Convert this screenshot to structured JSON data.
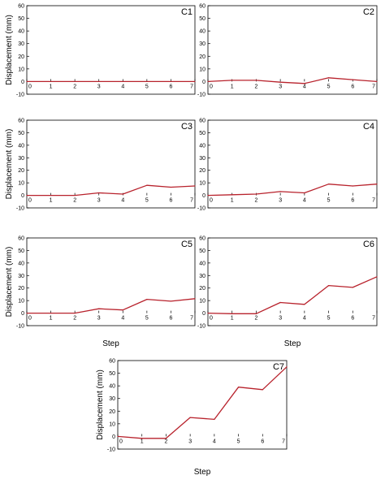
{
  "figure": {
    "ylabel": "Displacement (mm)",
    "xlabel": "Step"
  },
  "chart_data": [
    {
      "type": "line",
      "label": "C1",
      "x": [
        0,
        1,
        2,
        3,
        4,
        5,
        6,
        7
      ],
      "series": [
        {
          "values": [
            0,
            0,
            0,
            0,
            0,
            0,
            0,
            0
          ],
          "color": "#b8222c"
        }
      ],
      "xlim": [
        0,
        7
      ],
      "ylim": [
        -10,
        60
      ],
      "xticks": [
        0,
        1,
        2,
        3,
        4,
        5,
        6,
        7
      ],
      "yticks": [
        -10,
        0,
        10,
        20,
        30,
        40,
        50,
        60
      ],
      "ylabel": "Displacement (mm)",
      "xlabel": "",
      "grid": false
    },
    {
      "type": "line",
      "label": "C2",
      "x": [
        0,
        1,
        2,
        3,
        4,
        5,
        6,
        7
      ],
      "series": [
        {
          "values": [
            0,
            1,
            1,
            -0.5,
            -1.5,
            3,
            1.5,
            0
          ],
          "color": "#b8222c"
        }
      ],
      "xlim": [
        0,
        7
      ],
      "ylim": [
        -10,
        60
      ],
      "xticks": [
        0,
        1,
        2,
        3,
        4,
        5,
        6,
        7
      ],
      "yticks": [
        -10,
        0,
        10,
        20,
        30,
        40,
        50,
        60
      ],
      "ylabel": "",
      "xlabel": "",
      "grid": false
    },
    {
      "type": "line",
      "label": "C3",
      "x": [
        0,
        1,
        2,
        3,
        4,
        5,
        6,
        7
      ],
      "series": [
        {
          "values": [
            0,
            0,
            0,
            2,
            1,
            8,
            6.5,
            7.5
          ],
          "color": "#b8222c"
        }
      ],
      "xlim": [
        0,
        7
      ],
      "ylim": [
        -10,
        60
      ],
      "xticks": [
        0,
        1,
        2,
        3,
        4,
        5,
        6,
        7
      ],
      "yticks": [
        -10,
        0,
        10,
        20,
        30,
        40,
        50,
        60
      ],
      "ylabel": "Displacement (mm)",
      "xlabel": "",
      "grid": false
    },
    {
      "type": "line",
      "label": "C4",
      "x": [
        0,
        1,
        2,
        3,
        4,
        5,
        6,
        7
      ],
      "series": [
        {
          "values": [
            0,
            0.5,
            1,
            3,
            2,
            9,
            7.5,
            9
          ],
          "color": "#b8222c"
        }
      ],
      "xlim": [
        0,
        7
      ],
      "ylim": [
        -10,
        60
      ],
      "xticks": [
        0,
        1,
        2,
        3,
        4,
        5,
        6,
        7
      ],
      "yticks": [
        -10,
        0,
        10,
        20,
        30,
        40,
        50,
        60
      ],
      "ylabel": "",
      "xlabel": "",
      "grid": false
    },
    {
      "type": "line",
      "label": "C5",
      "x": [
        0,
        1,
        2,
        3,
        4,
        5,
        6,
        7
      ],
      "series": [
        {
          "values": [
            0,
            0,
            0,
            3.5,
            2.5,
            11,
            9.5,
            11.5
          ],
          "color": "#b8222c"
        }
      ],
      "xlim": [
        0,
        7
      ],
      "ylim": [
        -10,
        60
      ],
      "xticks": [
        0,
        1,
        2,
        3,
        4,
        5,
        6,
        7
      ],
      "yticks": [
        -10,
        0,
        10,
        20,
        30,
        40,
        50,
        60
      ],
      "ylabel": "Displacement (mm)",
      "xlabel": "Step",
      "grid": false
    },
    {
      "type": "line",
      "label": "C6",
      "x": [
        0,
        1,
        2,
        3,
        4,
        5,
        6,
        7
      ],
      "series": [
        {
          "values": [
            0,
            -0.5,
            -0.5,
            8.5,
            7,
            22,
            20.5,
            29
          ],
          "color": "#b8222c"
        }
      ],
      "xlim": [
        0,
        7
      ],
      "ylim": [
        -10,
        60
      ],
      "xticks": [
        0,
        1,
        2,
        3,
        4,
        5,
        6,
        7
      ],
      "yticks": [
        -10,
        0,
        10,
        20,
        30,
        40,
        50,
        60
      ],
      "ylabel": "",
      "xlabel": "Step",
      "grid": false
    },
    {
      "type": "line",
      "label": "C7",
      "x": [
        0,
        1,
        2,
        3,
        4,
        5,
        6,
        7
      ],
      "series": [
        {
          "values": [
            0,
            -1.5,
            -1.5,
            15,
            13.5,
            39,
            37,
            55
          ],
          "color": "#b8222c"
        }
      ],
      "xlim": [
        0,
        7
      ],
      "ylim": [
        -10,
        60
      ],
      "xticks": [
        0,
        1,
        2,
        3,
        4,
        5,
        6,
        7
      ],
      "yticks": [
        -10,
        0,
        10,
        20,
        30,
        40,
        50,
        60
      ],
      "ylabel": "Displacement (mm)",
      "xlabel": "Step",
      "grid": false
    }
  ]
}
